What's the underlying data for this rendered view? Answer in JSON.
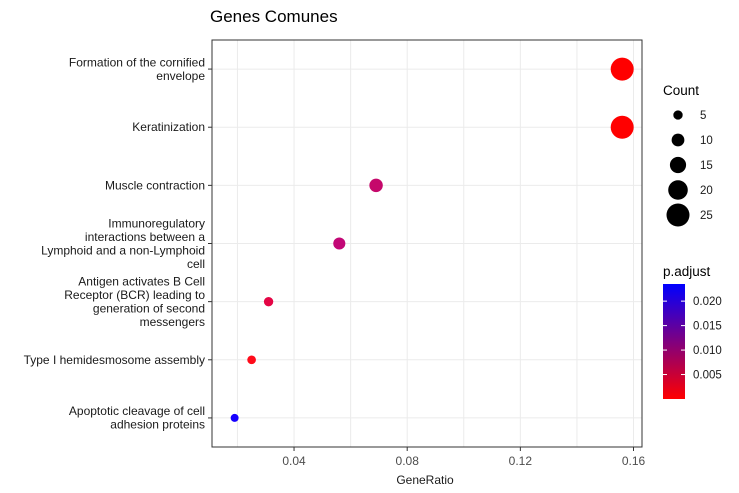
{
  "chart_data": {
    "type": "scatter",
    "title": "Genes Comunes",
    "xlabel": "GeneRatio",
    "ylabel": "",
    "xlim": [
      0.011,
      0.163
    ],
    "x_ticks": [
      {
        "value": 0.04,
        "label": "0.04"
      },
      {
        "value": 0.08,
        "label": "0.08"
      },
      {
        "value": 0.12,
        "label": "0.12"
      },
      {
        "value": 0.16,
        "label": "0.16"
      }
    ],
    "grid": true,
    "categories": [
      {
        "label_lines": [
          "Formation of the cornified",
          "envelope"
        ]
      },
      {
        "label_lines": [
          "Keratinization"
        ]
      },
      {
        "label_lines": [
          "Muscle contraction"
        ]
      },
      {
        "label_lines": [
          "Immunoregulatory",
          "interactions between a",
          "Lymphoid and a non-Lymphoid",
          "cell"
        ]
      },
      {
        "label_lines": [
          "Antigen activates B Cell",
          "Receptor (BCR) leading to",
          "generation of second",
          "messengers"
        ]
      },
      {
        "label_lines": [
          "Type I hemidesmosome assembly"
        ]
      },
      {
        "label_lines": [
          "Apoptotic cleavage of cell",
          "adhesion  proteins"
        ]
      }
    ],
    "points": [
      {
        "x": 0.156,
        "count": 25,
        "p_adjust": 0.0003,
        "color": "#ff0000"
      },
      {
        "x": 0.156,
        "count": 25,
        "p_adjust": 0.0003,
        "color": "#ff0000"
      },
      {
        "x": 0.069,
        "count": 11,
        "p_adjust": 0.0105,
        "color": "#c5086b"
      },
      {
        "x": 0.056,
        "count": 9,
        "p_adjust": 0.0125,
        "color": "#c20776"
      },
      {
        "x": 0.031,
        "count": 5,
        "p_adjust": 0.0075,
        "color": "#e40545"
      },
      {
        "x": 0.025,
        "count": 4,
        "p_adjust": 0.0012,
        "color": "#ff0b1a"
      },
      {
        "x": 0.019,
        "count": 3,
        "p_adjust": 0.0225,
        "color": "#1600ff"
      }
    ],
    "legend_size": {
      "title": "Count",
      "entries": [
        {
          "count": 5,
          "label": "5"
        },
        {
          "count": 10,
          "label": "10"
        },
        {
          "count": 15,
          "label": "15"
        },
        {
          "count": 20,
          "label": "20"
        },
        {
          "count": 25,
          "label": "25"
        }
      ]
    },
    "legend_color": {
      "title": "p.adjust",
      "range": [
        0.0,
        0.0235
      ],
      "low_color": "#ff0000",
      "high_color": "#0000ff",
      "ticks": [
        {
          "value": 0.02,
          "label": "0.020"
        },
        {
          "value": 0.015,
          "label": "0.015"
        },
        {
          "value": 0.01,
          "label": "0.010"
        },
        {
          "value": 0.005,
          "label": "0.005"
        }
      ]
    },
    "legend_position": "right"
  }
}
